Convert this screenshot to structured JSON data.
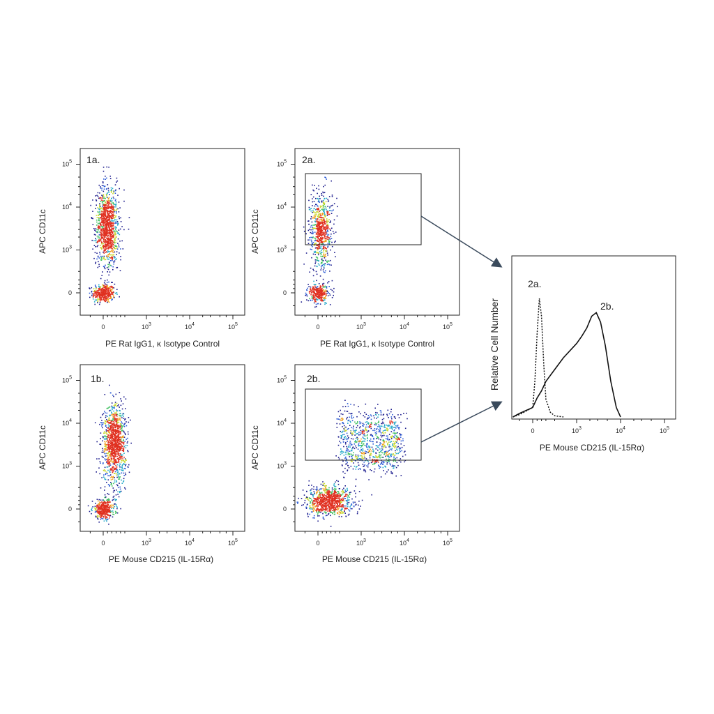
{
  "chart_data": [
    {
      "type": "scatter",
      "panel_label": "1a.",
      "xlabel": "PE Rat IgG1, κ Isotype Control",
      "ylabel": "APC CD11c",
      "x_ticks": [
        "0",
        "10^3",
        "10^4",
        "10^5"
      ],
      "y_ticks": [
        "0",
        "10^3",
        "10^4",
        "10^5"
      ],
      "scale": "biexponential",
      "populations": [
        {
          "name": "",
          "x_center": 0,
          "y_center": 0,
          "x_spread": 150,
          "count": 380
        },
        {
          "name": "",
          "x_center": 80,
          "y_center": 5000,
          "x_spread": 160,
          "count": 1100
        }
      ]
    },
    {
      "type": "scatter",
      "panel_label": "2a.",
      "xlabel": "PE Rat IgG1, κ Isotype Control",
      "ylabel": "APC CD11c",
      "x_ticks": [
        "0",
        "10^3",
        "10^4",
        "10^5"
      ],
      "y_ticks": [
        "0",
        "10^3",
        "10^4",
        "10^5"
      ],
      "scale": "biexponential",
      "gate": {
        "x_range": [
          -150,
          25000
        ],
        "y_range": [
          800,
          60000
        ]
      },
      "populations": [
        {
          "name": "",
          "x_center": 0,
          "y_center": 0,
          "x_spread": 150,
          "count": 300
        },
        {
          "name": "",
          "x_center": 60,
          "y_center": 4000,
          "x_spread": 160,
          "count": 700
        }
      ]
    },
    {
      "type": "scatter",
      "panel_label": "1b.",
      "xlabel": "PE Mouse CD215 (IL-15Rα)",
      "ylabel": "APC CD11c",
      "x_ticks": [
        "0",
        "10^3",
        "10^4",
        "10^5"
      ],
      "y_ticks": [
        "0",
        "10^3",
        "10^4",
        "10^5"
      ],
      "scale": "biexponential",
      "populations": [
        {
          "name": "",
          "x_center": 0,
          "y_center": 0,
          "x_spread": 150,
          "count": 380
        },
        {
          "name": "",
          "x_center": 250,
          "y_center": 5000,
          "x_spread": 170,
          "count": 1100
        }
      ]
    },
    {
      "type": "scatter",
      "panel_label": "2b.",
      "xlabel": "PE Mouse CD215 (IL-15Rα)",
      "ylabel": "APC CD11c",
      "x_ticks": [
        "0",
        "10^3",
        "10^4",
        "10^5"
      ],
      "y_ticks": [
        "0",
        "10^3",
        "10^4",
        "10^5"
      ],
      "scale": "biexponential",
      "gate": {
        "x_range": [
          -150,
          25000
        ],
        "y_range": [
          800,
          60000
        ]
      },
      "populations": [
        {
          "name": "",
          "x_center": 150,
          "y_center": 0,
          "x_spread": 250,
          "count": 900
        },
        {
          "name": "",
          "x_center": 1500,
          "y_center": 6000,
          "x_spread": 0,
          "count": 900
        }
      ]
    },
    {
      "type": "line",
      "subtype": "histogram overlay",
      "xlabel": "PE Mouse CD215 (IL-15Rα)",
      "ylabel": "Relative Cell Number",
      "x_ticks": [
        "0",
        "10^3",
        "10^4",
        "10^5"
      ],
      "series": [
        {
          "name": "2a.",
          "style": "dotted",
          "x": [
            -200,
            -100,
            0,
            50,
            100,
            150,
            200,
            250,
            300,
            400,
            500,
            700
          ],
          "y": [
            0,
            2,
            8,
            30,
            70,
            100,
            85,
            45,
            15,
            4,
            1,
            0
          ]
        },
        {
          "name": "2b.",
          "style": "solid",
          "x": [
            -200,
            -100,
            0,
            100,
            200,
            300,
            400,
            500,
            700,
            1000,
            1300,
            1700,
            2200,
            2800,
            3500,
            4500,
            6000,
            8000,
            10000
          ],
          "y": [
            0,
            3,
            8,
            16,
            22,
            30,
            35,
            40,
            50,
            62,
            68,
            75,
            85,
            88,
            80,
            60,
            30,
            8,
            0
          ]
        }
      ]
    }
  ],
  "colors": {
    "density": [
      "#1a1a8c",
      "#2b5bd6",
      "#22a8c8",
      "#40c060",
      "#c8d830",
      "#f0a020",
      "#e03020"
    ],
    "arrow": "#3a4a5c"
  }
}
